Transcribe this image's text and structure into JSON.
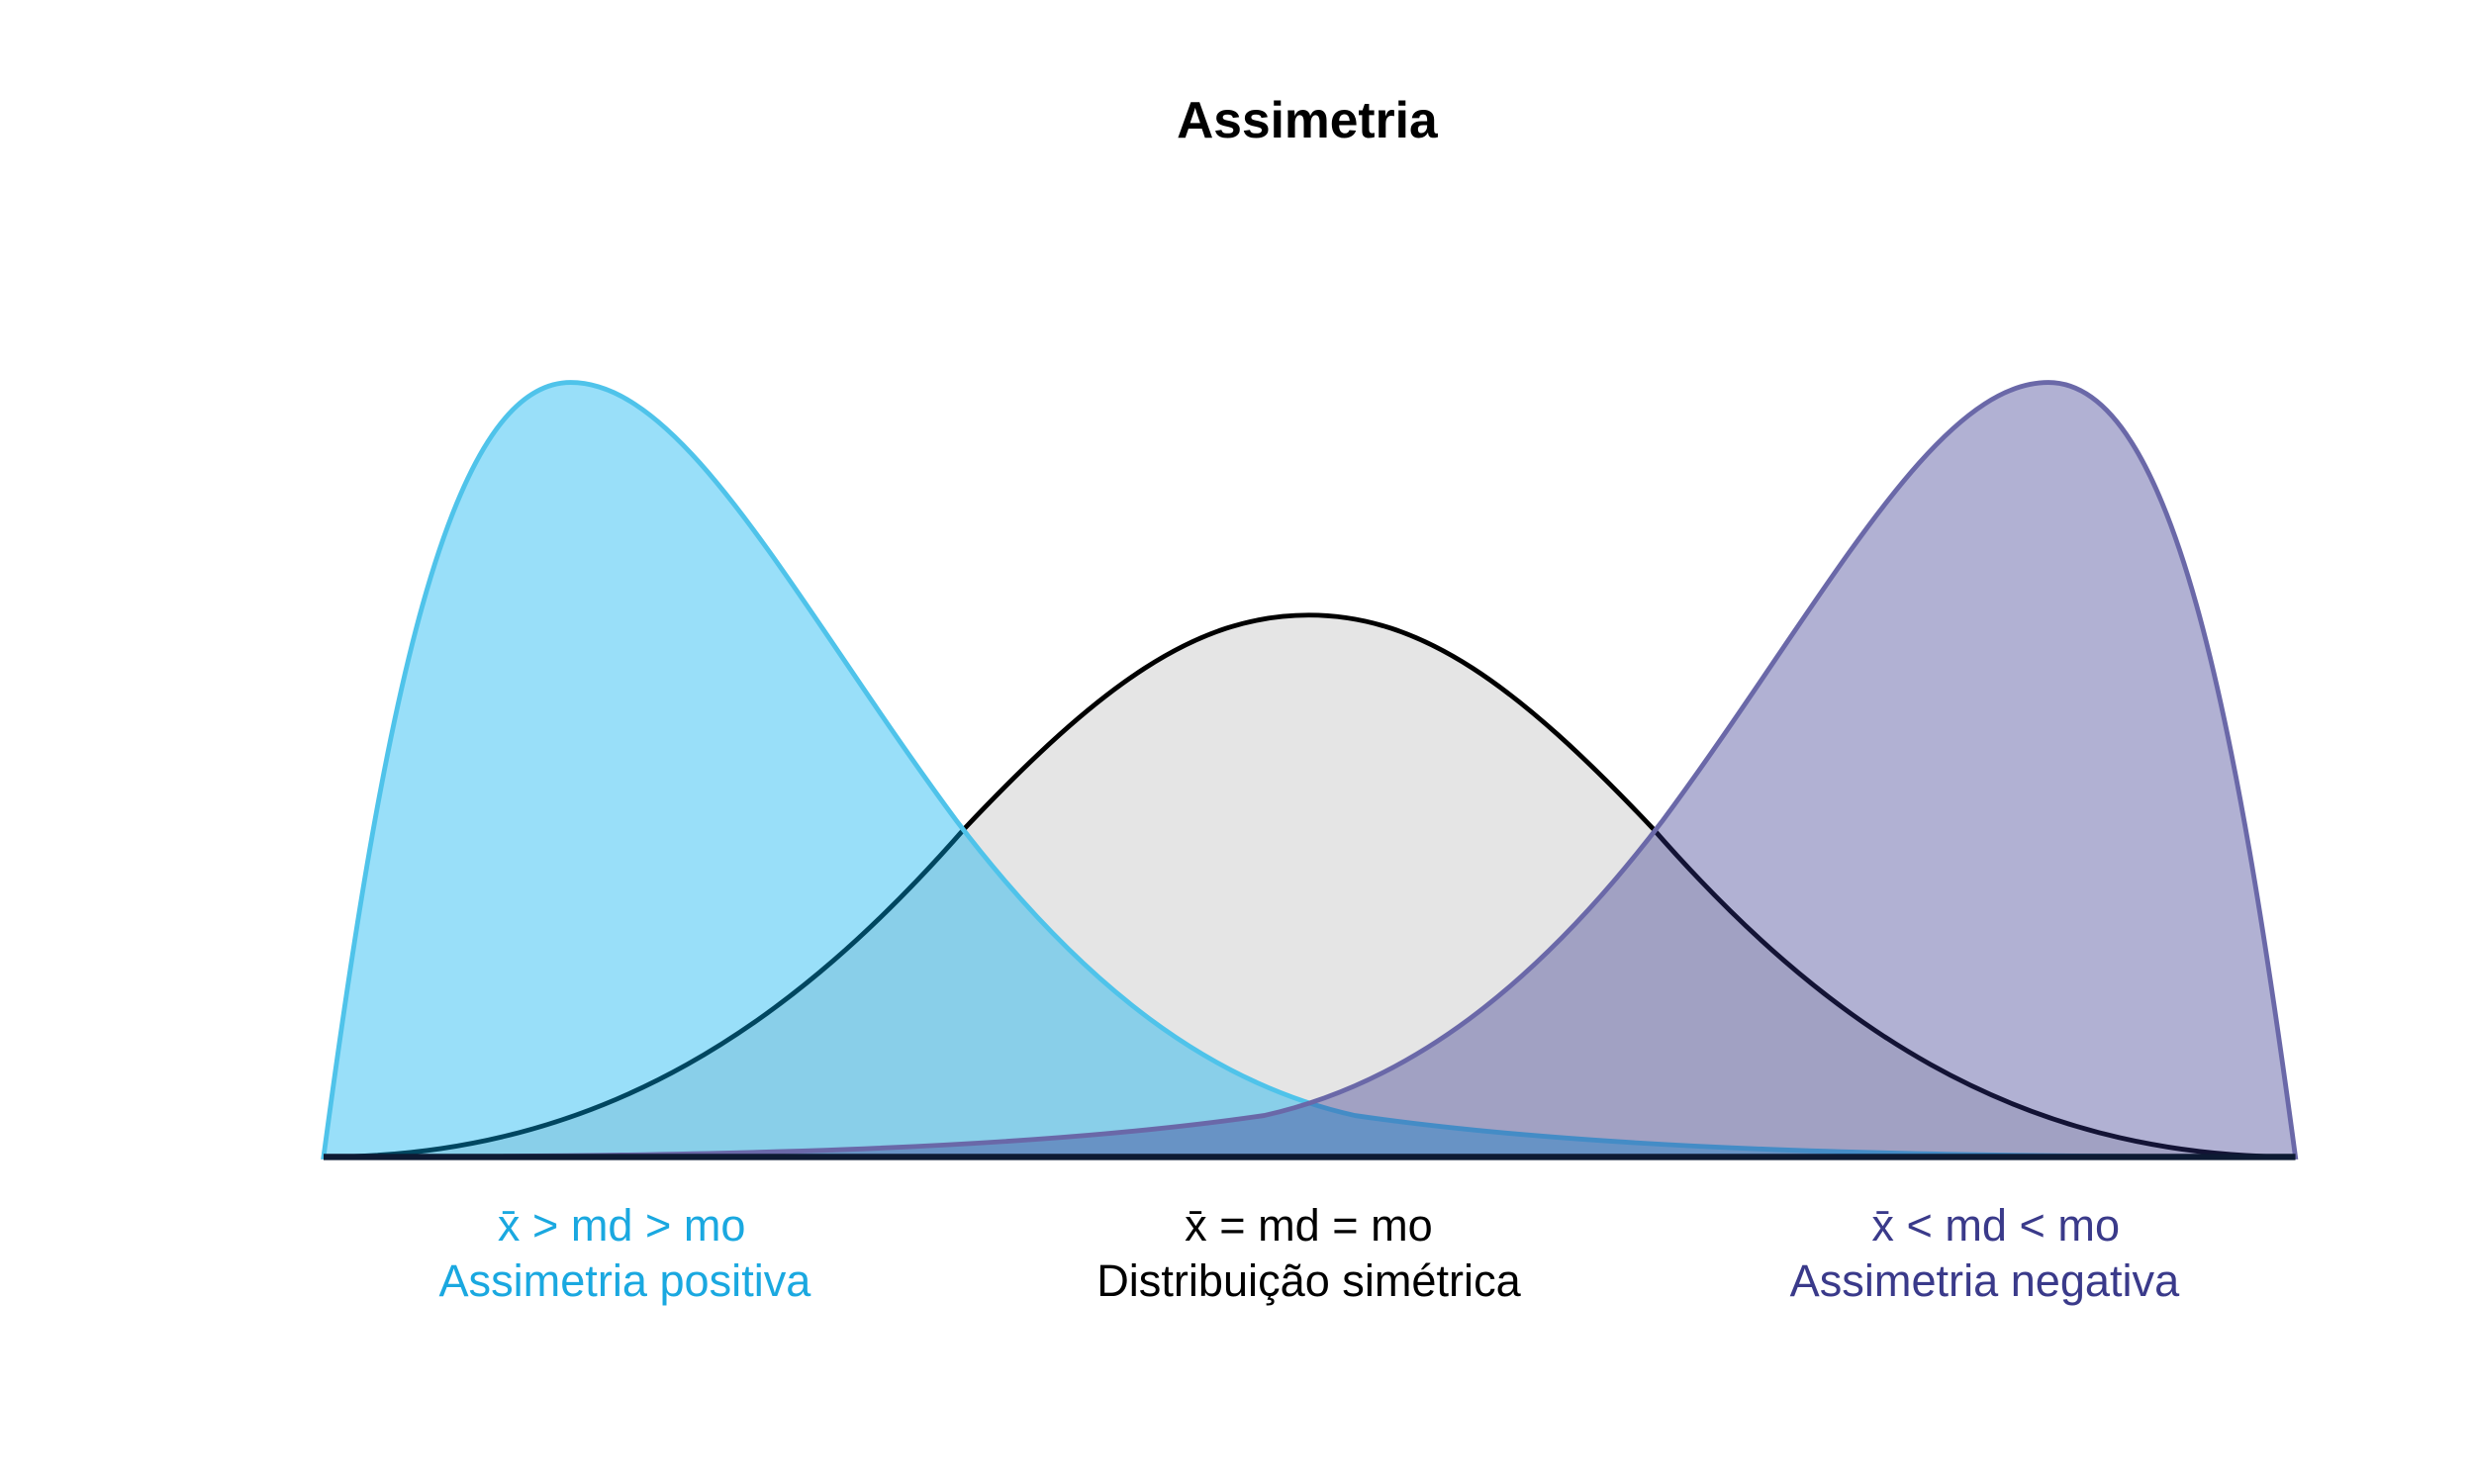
{
  "title": "Assimetria",
  "distributions": [
    {
      "relation": "x̄ >  md > mo",
      "name": "Assimetria positiva"
    },
    {
      "relation": "x̄ =  md = mo",
      "name": "Distribuição simétrica"
    },
    {
      "relation": "x̄ <  md < mo",
      "name": "Assimetria negativa"
    }
  ]
}
